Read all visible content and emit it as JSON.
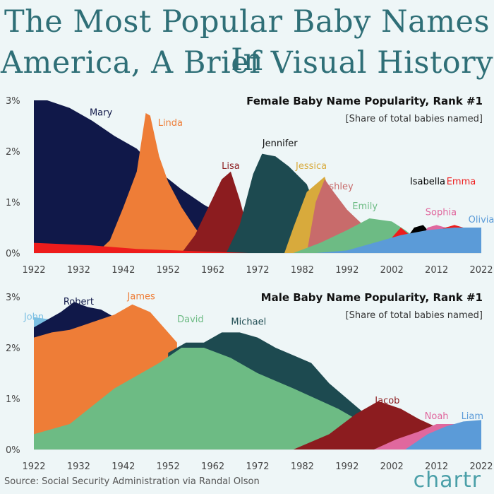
{
  "title_line1": "The Most Popular Baby Names In",
  "title_line2": "America, A Brief Visual History",
  "footer": "Source: Social Security Administration via Randal Olson",
  "brand": "chartr",
  "chart_data": [
    {
      "type": "area",
      "title": "Female Baby Name Popularity, Rank #1",
      "subtitle": "[Share of total babies named]",
      "x_ticks": [
        1922,
        1932,
        1942,
        1952,
        1962,
        1972,
        1982,
        1992,
        2002,
        2012,
        2022
      ],
      "y_ticks": [
        "0%",
        "1%",
        "2%",
        "3%"
      ],
      "xlim": [
        1922,
        2022
      ],
      "ylim": [
        0,
        3
      ],
      "series": [
        {
          "name": "Mary",
          "color": "#101849",
          "label_at": [
            1937,
            2.7
          ],
          "label_color": "#101849",
          "x": [
            1922,
            1925,
            1930,
            1935,
            1940,
            1945,
            1950,
            1955,
            1960,
            1962
          ],
          "y": [
            3.0,
            3.0,
            2.85,
            2.6,
            2.3,
            2.05,
            1.6,
            1.25,
            0.95,
            0.85
          ]
        },
        {
          "name": "Linda",
          "color": "#ee7d37",
          "label_at": [
            1952.5,
            2.5
          ],
          "label_color": "#ee7d37",
          "x": [
            1936,
            1939,
            1942,
            1945,
            1947,
            1948,
            1950,
            1952,
            1955,
            1958,
            1961
          ],
          "y": [
            0.0,
            0.25,
            0.9,
            1.6,
            2.75,
            2.7,
            1.9,
            1.4,
            0.9,
            0.5,
            0.15
          ]
        },
        {
          "name": "Lisa",
          "color": "#8c1c1f",
          "label_at": [
            1966,
            1.65
          ],
          "label_color": "#8c1c1f",
          "x": [
            1955,
            1958,
            1961,
            1964,
            1966,
            1968,
            1970,
            1972
          ],
          "y": [
            0.0,
            0.35,
            0.9,
            1.45,
            1.6,
            1.05,
            0.4,
            0.0
          ]
        },
        {
          "name": "Jennifer",
          "color": "#1d4a50",
          "label_at": [
            1977,
            2.1
          ],
          "label_color": "#111",
          "x": [
            1965,
            1968,
            1971,
            1973,
            1976,
            1979,
            1983,
            1985,
            1987
          ],
          "y": [
            0.0,
            0.55,
            1.55,
            1.95,
            1.9,
            1.7,
            1.35,
            0.9,
            0.0
          ]
        },
        {
          "name": "Jessica",
          "color": "#d8aa3c",
          "label_at": [
            1984,
            1.65
          ],
          "label_color": "#d8aa3c",
          "x": [
            1978,
            1980,
            1983,
            1987,
            1989,
            1991,
            1993
          ],
          "y": [
            0.0,
            0.5,
            1.2,
            1.5,
            0.95,
            0.5,
            0.0
          ]
        },
        {
          "name": "Ashley",
          "color": "#c86b6b",
          "label_at": [
            1990,
            1.25
          ],
          "label_color": "#c86b6b",
          "x": [
            1983,
            1985,
            1987,
            1989,
            1992,
            1995,
            1997
          ],
          "y": [
            0.0,
            1.0,
            1.45,
            1.2,
            0.85,
            0.6,
            0.0
          ]
        },
        {
          "name": "Emily",
          "color": "#6dbb84",
          "label_at": [
            1996,
            0.86
          ],
          "label_color": "#6dbb84",
          "x": [
            1980,
            1986,
            1992,
            1997,
            2002,
            2005,
            2008
          ],
          "y": [
            0.0,
            0.2,
            0.45,
            0.68,
            0.62,
            0.45,
            0.25
          ]
        },
        {
          "name": "Isabella",
          "color": "#000000",
          "label_at": [
            2010,
            1.35
          ],
          "label_color": "#000",
          "x": [
            2003,
            2005,
            2007,
            2009,
            2011
          ],
          "y": [
            0.0,
            0.25,
            0.5,
            0.55,
            0.35
          ]
        },
        {
          "name": "Sophia",
          "color": "#e0689e",
          "label_at": [
            2013,
            0.74
          ],
          "label_color": "#e0689e",
          "x": [
            2008,
            2010,
            2012,
            2014,
            2016
          ],
          "y": [
            0.2,
            0.5,
            0.55,
            0.5,
            0.4
          ]
        },
        {
          "name": "Emma",
          "color": "#ee1c1c",
          "label_at": [
            2017.5,
            1.35
          ],
          "label_color": "#ee1c1c",
          "x": [
            2002,
            2004,
            2006,
            2008,
            2014,
            2016,
            2018
          ],
          "y": [
            0.3,
            0.5,
            0.35,
            0.3,
            0.5,
            0.55,
            0.5
          ]
        },
        {
          "name": "Olivia",
          "color": "#5b9bd8",
          "label_at": [
            2022,
            0.6
          ],
          "label_color": "#5b9bd8",
          "x": [
            1985,
            1992,
            1998,
            2004,
            2010,
            2016,
            2022
          ],
          "y": [
            0.0,
            0.05,
            0.2,
            0.35,
            0.45,
            0.5,
            0.5
          ]
        },
        {
          "name": "Mary-tail",
          "color": "#ee1c1c",
          "x": [
            1922,
            1935,
            1945,
            1960,
            1970
          ],
          "y": [
            0.2,
            0.15,
            0.08,
            0.03,
            0.0
          ]
        }
      ]
    },
    {
      "type": "area",
      "title": "Male Baby Name Popularity, Rank #1",
      "subtitle": "[Share of total babies named]",
      "x_ticks": [
        1922,
        1932,
        1942,
        1952,
        1962,
        1972,
        1982,
        1992,
        2002,
        2012,
        2022
      ],
      "y_ticks": [
        "0%",
        "1%",
        "2%",
        "3%"
      ],
      "xlim": [
        1922,
        2022
      ],
      "ylim": [
        0,
        3
      ],
      "series": [
        {
          "name": "John",
          "color": "#7cc0e3",
          "label_at": [
            1922,
            2.55
          ],
          "label_color": "#7cc0e3",
          "x": [
            1922,
            1926,
            1930
          ],
          "y": [
            2.6,
            2.55,
            2.5
          ]
        },
        {
          "name": "Robert",
          "color": "#101849",
          "label_at": [
            1932,
            2.85
          ],
          "label_color": "#101849",
          "x": [
            1922,
            1925,
            1928,
            1931,
            1934,
            1937,
            1940
          ],
          "y": [
            2.4,
            2.55,
            2.7,
            2.9,
            2.8,
            2.75,
            2.6
          ]
        },
        {
          "name": "James",
          "color": "#ee7d37",
          "label_at": [
            1946,
            2.95
          ],
          "label_color": "#ee7d37",
          "x": [
            1922,
            1926,
            1930,
            1935,
            1940,
            1944,
            1948,
            1952,
            1954
          ],
          "y": [
            2.2,
            2.3,
            2.35,
            2.5,
            2.65,
            2.85,
            2.7,
            2.3,
            2.1
          ]
        },
        {
          "name": "Michael",
          "color": "#1d4a50",
          "label_at": [
            1970,
            2.45
          ],
          "label_color": "#1d4a50",
          "x": [
            1952,
            1956,
            1960,
            1964,
            1968,
            1972,
            1976,
            1980,
            1984,
            1988,
            1992,
            1996
          ],
          "y": [
            1.9,
            2.1,
            2.1,
            2.3,
            2.3,
            2.2,
            2.0,
            1.85,
            1.7,
            1.3,
            1.0,
            0.7
          ]
        },
        {
          "name": "David",
          "color": "#6dbb84",
          "label_at": [
            1957,
            2.5
          ],
          "label_color": "#6dbb84",
          "x": [
            1922,
            1930,
            1940,
            1950,
            1955,
            1960,
            1966,
            1972,
            1980,
            1990,
            1996,
            2000
          ],
          "y": [
            0.3,
            0.5,
            1.2,
            1.7,
            2.0,
            2.0,
            1.8,
            1.5,
            1.2,
            0.8,
            0.5,
            0.0
          ]
        },
        {
          "name": "Jacob",
          "color": "#8c1c1f",
          "label_at": [
            2001,
            0.9
          ],
          "label_color": "#8c1c1f",
          "x": [
            1980,
            1988,
            1994,
            1999,
            2004,
            2008,
            2013
          ],
          "y": [
            0.0,
            0.3,
            0.7,
            0.95,
            0.8,
            0.6,
            0.4
          ]
        },
        {
          "name": "Noah",
          "color": "#e0689e",
          "label_at": [
            2012,
            0.6
          ],
          "label_color": "#e0689e",
          "x": [
            1998,
            2003,
            2008,
            2012,
            2016
          ],
          "y": [
            0.0,
            0.2,
            0.35,
            0.5,
            0.5
          ]
        },
        {
          "name": "Liam",
          "color": "#5b9bd8",
          "label_at": [
            2020,
            0.6
          ],
          "label_color": "#5b9bd8",
          "x": [
            2005,
            2010,
            2014,
            2018,
            2022
          ],
          "y": [
            0.0,
            0.3,
            0.45,
            0.55,
            0.58
          ]
        }
      ]
    }
  ]
}
